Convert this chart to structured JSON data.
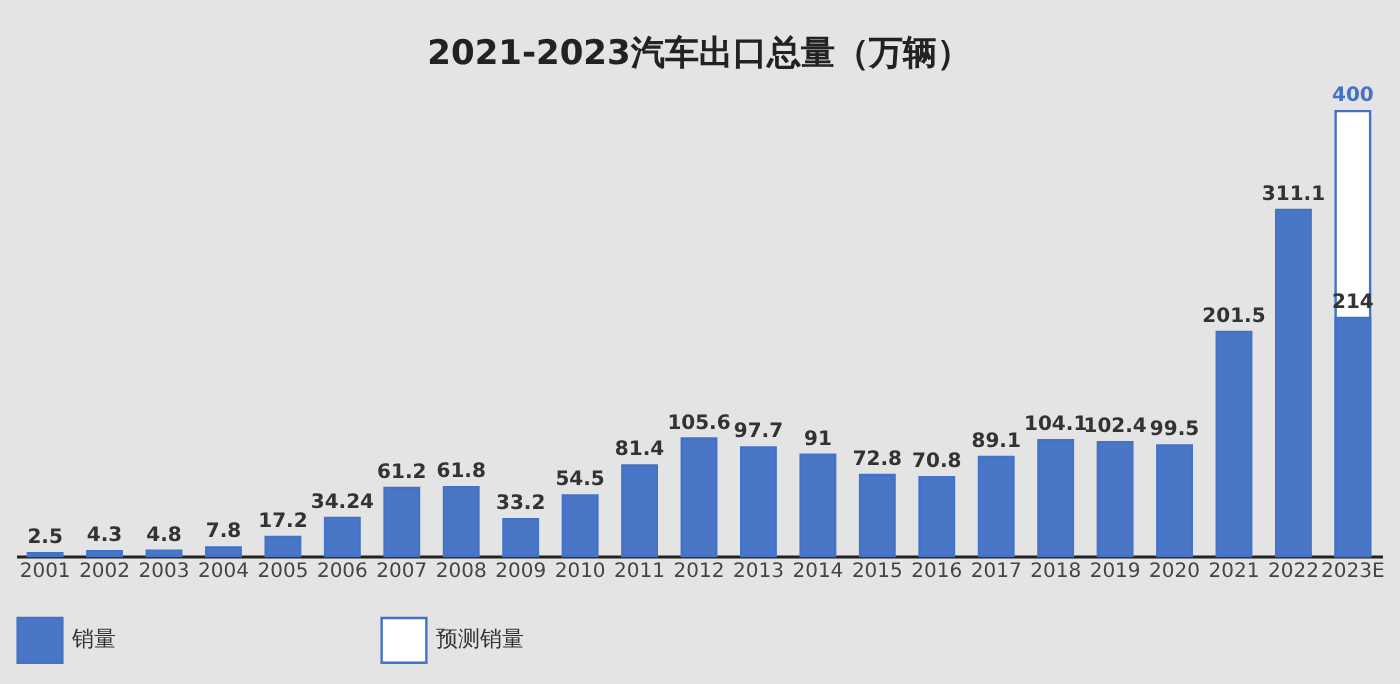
{
  "chart_data": {
    "type": "bar",
    "title": "2021-2023汽车出口总量（万辆）",
    "categories": [
      "2001",
      "2002",
      "2003",
      "2004",
      "2005",
      "2006",
      "2007",
      "2008",
      "2009",
      "2010",
      "2011",
      "2012",
      "2013",
      "2014",
      "2015",
      "2016",
      "2017",
      "2018",
      "2019",
      "2020",
      "2021",
      "2022",
      "2023E"
    ],
    "series": [
      {
        "name": "销量",
        "color": "#4a76c8",
        "values": [
          2.5,
          4.3,
          4.8,
          7.8,
          17.2,
          34.24,
          61.2,
          61.8,
          33.2,
          54.5,
          81.4,
          105.6,
          97.7,
          91,
          72.8,
          70.8,
          89.1,
          104.1,
          102.4,
          99.5,
          201.5,
          311.1,
          214
        ]
      },
      {
        "name": "预测销量",
        "color": "#ffffff",
        "values": [
          null,
          null,
          null,
          null,
          null,
          null,
          null,
          null,
          null,
          null,
          null,
          null,
          null,
          null,
          null,
          null,
          null,
          null,
          null,
          null,
          null,
          null,
          400
        ]
      }
    ],
    "data_labels": true,
    "legend": "bottom",
    "grid": false
  }
}
